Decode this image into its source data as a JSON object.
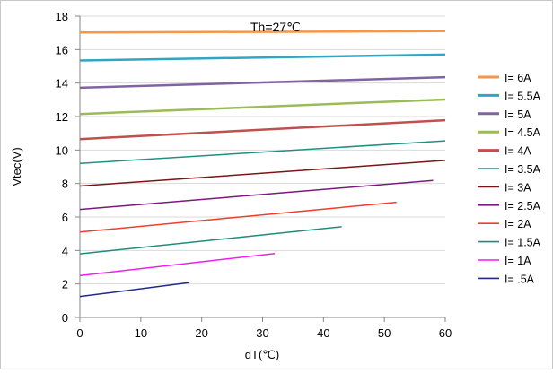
{
  "chart_data": {
    "type": "line",
    "title": "",
    "annotation": "Th=27℃",
    "xlabel": "dT(℃)",
    "ylabel": "Vtec(V)",
    "xlim": [
      0,
      60
    ],
    "ylim": [
      0,
      18
    ],
    "xticks": [
      0,
      10,
      20,
      30,
      40,
      50,
      60
    ],
    "yticks": [
      0,
      2,
      4,
      6,
      8,
      10,
      12,
      14,
      16,
      18
    ],
    "grid": "horizontal",
    "legend_position": "right",
    "series": [
      {
        "name": "I= 6A",
        "color": "#F79646",
        "x": [
          0,
          60
        ],
        "y": [
          17.02,
          17.1
        ]
      },
      {
        "name": "I= 5.5A",
        "color": "#31A5C4",
        "x": [
          0,
          60
        ],
        "y": [
          15.35,
          15.7
        ]
      },
      {
        "name": "I= 5A",
        "color": "#8064A2",
        "x": [
          0,
          60
        ],
        "y": [
          13.72,
          14.35
        ]
      },
      {
        "name": "I= 4.5A",
        "color": "#9BBB59",
        "x": [
          0,
          60
        ],
        "y": [
          12.15,
          13.02
        ]
      },
      {
        "name": "I= 4A",
        "color": "#C0504D",
        "x": [
          0,
          60
        ],
        "y": [
          10.65,
          11.78
        ]
      },
      {
        "name": "I= 3.5A",
        "color": "#1E9183",
        "x": [
          0,
          60
        ],
        "y": [
          9.2,
          10.55
        ]
      },
      {
        "name": "I= 3A",
        "color": "#7B1515",
        "x": [
          0,
          60
        ],
        "y": [
          7.85,
          9.38
        ]
      },
      {
        "name": "I= 2.5A",
        "color": "#7A1A7A",
        "x": [
          0,
          58
        ],
        "y": [
          6.45,
          8.18
        ]
      },
      {
        "name": "I= 2A",
        "color": "#F03C2A",
        "x": [
          0,
          52
        ],
        "y": [
          5.1,
          6.88
        ]
      },
      {
        "name": "I= 1.5A",
        "color": "#1E8C7A",
        "x": [
          0,
          43
        ],
        "y": [
          3.8,
          5.42
        ]
      },
      {
        "name": "I= 1A",
        "color": "#EE1FEE",
        "x": [
          0,
          32
        ],
        "y": [
          2.5,
          3.82
        ]
      },
      {
        "name": "I= .5A",
        "color": "#1F2A8C",
        "x": [
          0,
          18
        ],
        "y": [
          1.25,
          2.08
        ]
      }
    ]
  }
}
